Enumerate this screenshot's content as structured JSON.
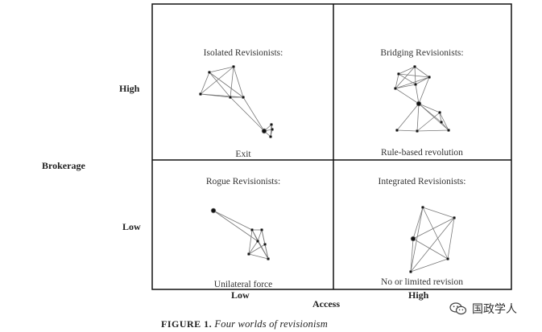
{
  "axes": {
    "y_title": "Brokerage",
    "y_high": "High",
    "y_low": "Low",
    "x_title": "Access",
    "x_low": "Low",
    "x_high": "High"
  },
  "quadrants": {
    "top_left": {
      "title": "Isolated Revisionists:",
      "outcome": "Exit"
    },
    "top_right": {
      "title": "Bridging Revisionists:",
      "outcome": "Rule-based revolution"
    },
    "bottom_left": {
      "title": "Rogue Revisionists:",
      "outcome": "Unilateral force"
    },
    "bottom_right": {
      "title": "Integrated Revisionists:",
      "outcome": "No or limited revision"
    }
  },
  "caption": {
    "figure_label": "FIGURE 1.",
    "text": "Four worlds of revisionism"
  },
  "watermark": {
    "text": "国政学人",
    "icon": "wechat-icon"
  }
}
